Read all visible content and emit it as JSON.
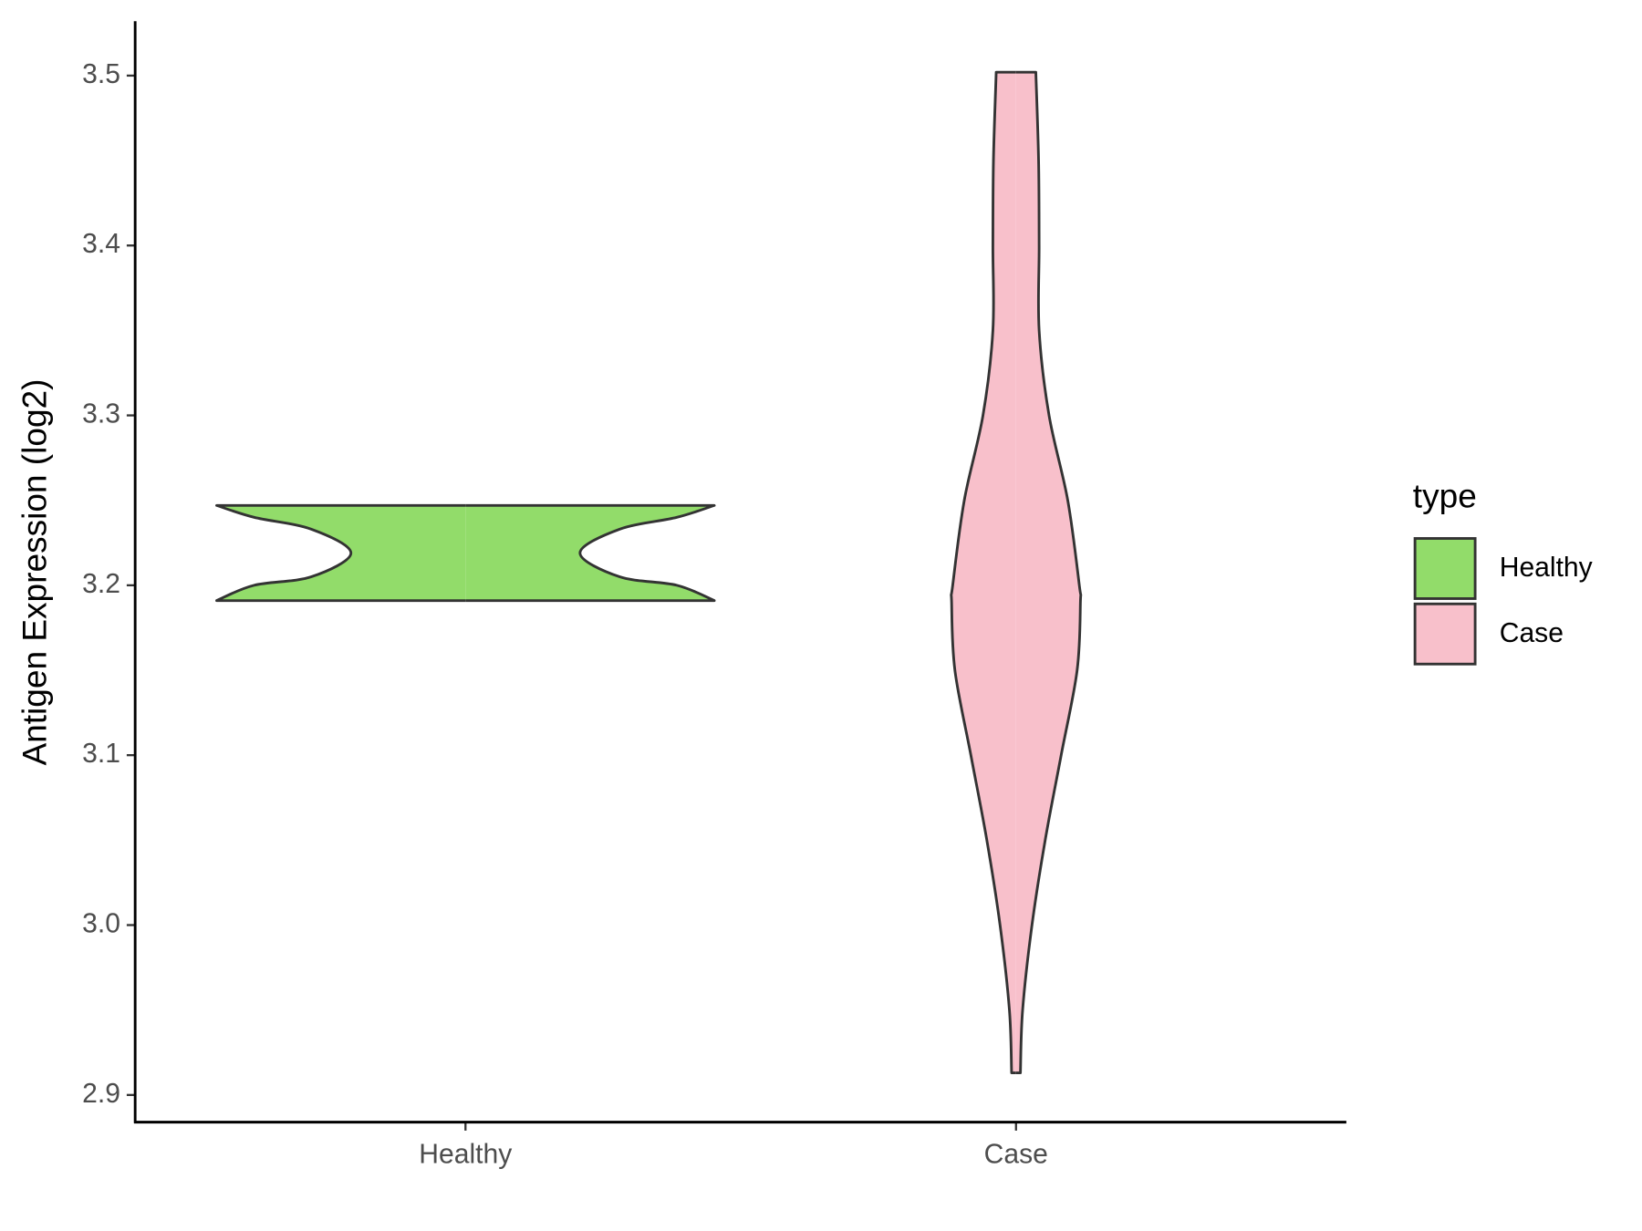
{
  "chart_data": {
    "type": "violin",
    "y_label": "Antigen Expression (log2)",
    "categories": [
      "Healthy",
      "Case"
    ],
    "xlim": [
      -0.6,
      1.6
    ],
    "ylim": [
      2.884,
      3.532
    ],
    "yticks": [
      {
        "value": 2.9,
        "label": "2.9"
      },
      {
        "value": 3.0,
        "label": "3.0"
      },
      {
        "value": 3.1,
        "label": "3.1"
      },
      {
        "value": 3.2,
        "label": "3.2"
      },
      {
        "value": 3.3,
        "label": "3.3"
      },
      {
        "value": 3.4,
        "label": "3.4"
      },
      {
        "value": 3.5,
        "label": "3.5"
      }
    ],
    "legend_title": "type",
    "legend": "right",
    "series": [
      {
        "name": "Healthy",
        "color": "#92dc6a",
        "values": [
          3.191,
          3.2,
          3.205,
          3.219,
          3.233,
          3.24,
          3.247
        ],
        "widths": [
          0.452,
          0.384,
          0.28,
          0.208,
          0.28,
          0.384,
          0.452
        ]
      },
      {
        "name": "Case",
        "color": "#f8c0cb",
        "values": [
          2.913,
          2.95,
          3.0,
          3.05,
          3.1,
          3.15,
          3.19,
          3.2,
          3.25,
          3.3,
          3.35,
          3.4,
          3.45,
          3.502
        ],
        "widths": [
          0.008,
          0.012,
          0.029,
          0.053,
          0.082,
          0.111,
          0.117,
          0.115,
          0.094,
          0.06,
          0.042,
          0.042,
          0.041,
          0.036
        ]
      }
    ]
  }
}
